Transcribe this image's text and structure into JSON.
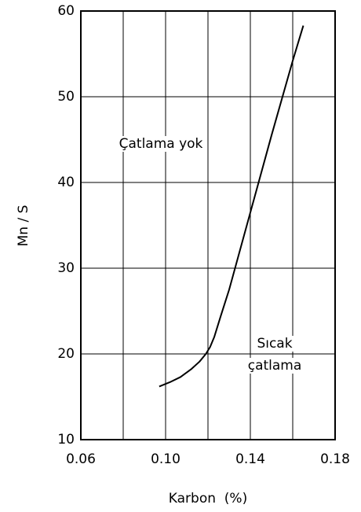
{
  "chart_data": {
    "type": "line",
    "xlabel": "Karbon  (%)",
    "ylabel": "Mn / S",
    "x": [
      0.097,
      0.102,
      0.107,
      0.112,
      0.116,
      0.119,
      0.121,
      0.123,
      0.126,
      0.13,
      0.14,
      0.15,
      0.16,
      0.165
    ],
    "series": [
      {
        "color": "#000000",
        "values": [
          16.2,
          16.7,
          17.3,
          18.2,
          19.1,
          20,
          20.8,
          22,
          24.4,
          27.5,
          36.5,
          45.5,
          54.2,
          58.3
        ]
      }
    ],
    "xlim": [
      0.06,
      0.18
    ],
    "xticks": [
      0.06,
      {
        "value": 0.1,
        "label": "0.10"
      },
      0.14,
      0.18
    ],
    "xgrid_minor": [
      0.08,
      0.12,
      0.16
    ],
    "ylim": [
      10,
      60
    ],
    "yticks": [
      10,
      20,
      30,
      40,
      50,
      60
    ],
    "grid": true,
    "annotations": [
      [
        "Çatlama yok"
      ],
      [
        "Sıcak",
        "çatlama"
      ]
    ]
  }
}
